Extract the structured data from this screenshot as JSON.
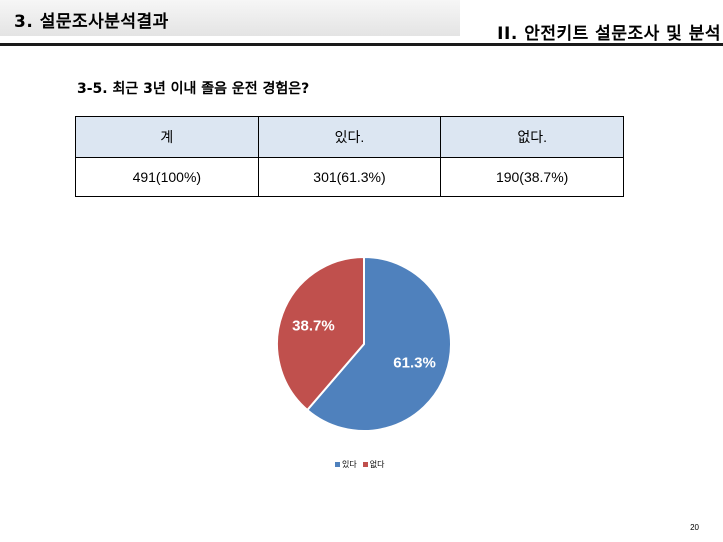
{
  "header": {
    "section_title": "3. 설문조사분석결과",
    "chapter_title": "II. 안전키트 설문조사 및 분석"
  },
  "question": "3-5. 최근 3년 이내 졸음 운전 경험은?",
  "table": {
    "headers": [
      "계",
      "있다.",
      "없다."
    ],
    "row": [
      "491(100%)",
      "301(61.3%)",
      "190(38.7%)"
    ]
  },
  "chart_data": {
    "type": "pie",
    "categories": [
      "있다",
      "없다"
    ],
    "values": [
      61.3,
      38.7
    ],
    "labels": [
      "61.3%",
      "38.7%"
    ],
    "colors": [
      "#4f81bd",
      "#c0504d"
    ],
    "legend_position": "bottom"
  },
  "page_number": "20"
}
